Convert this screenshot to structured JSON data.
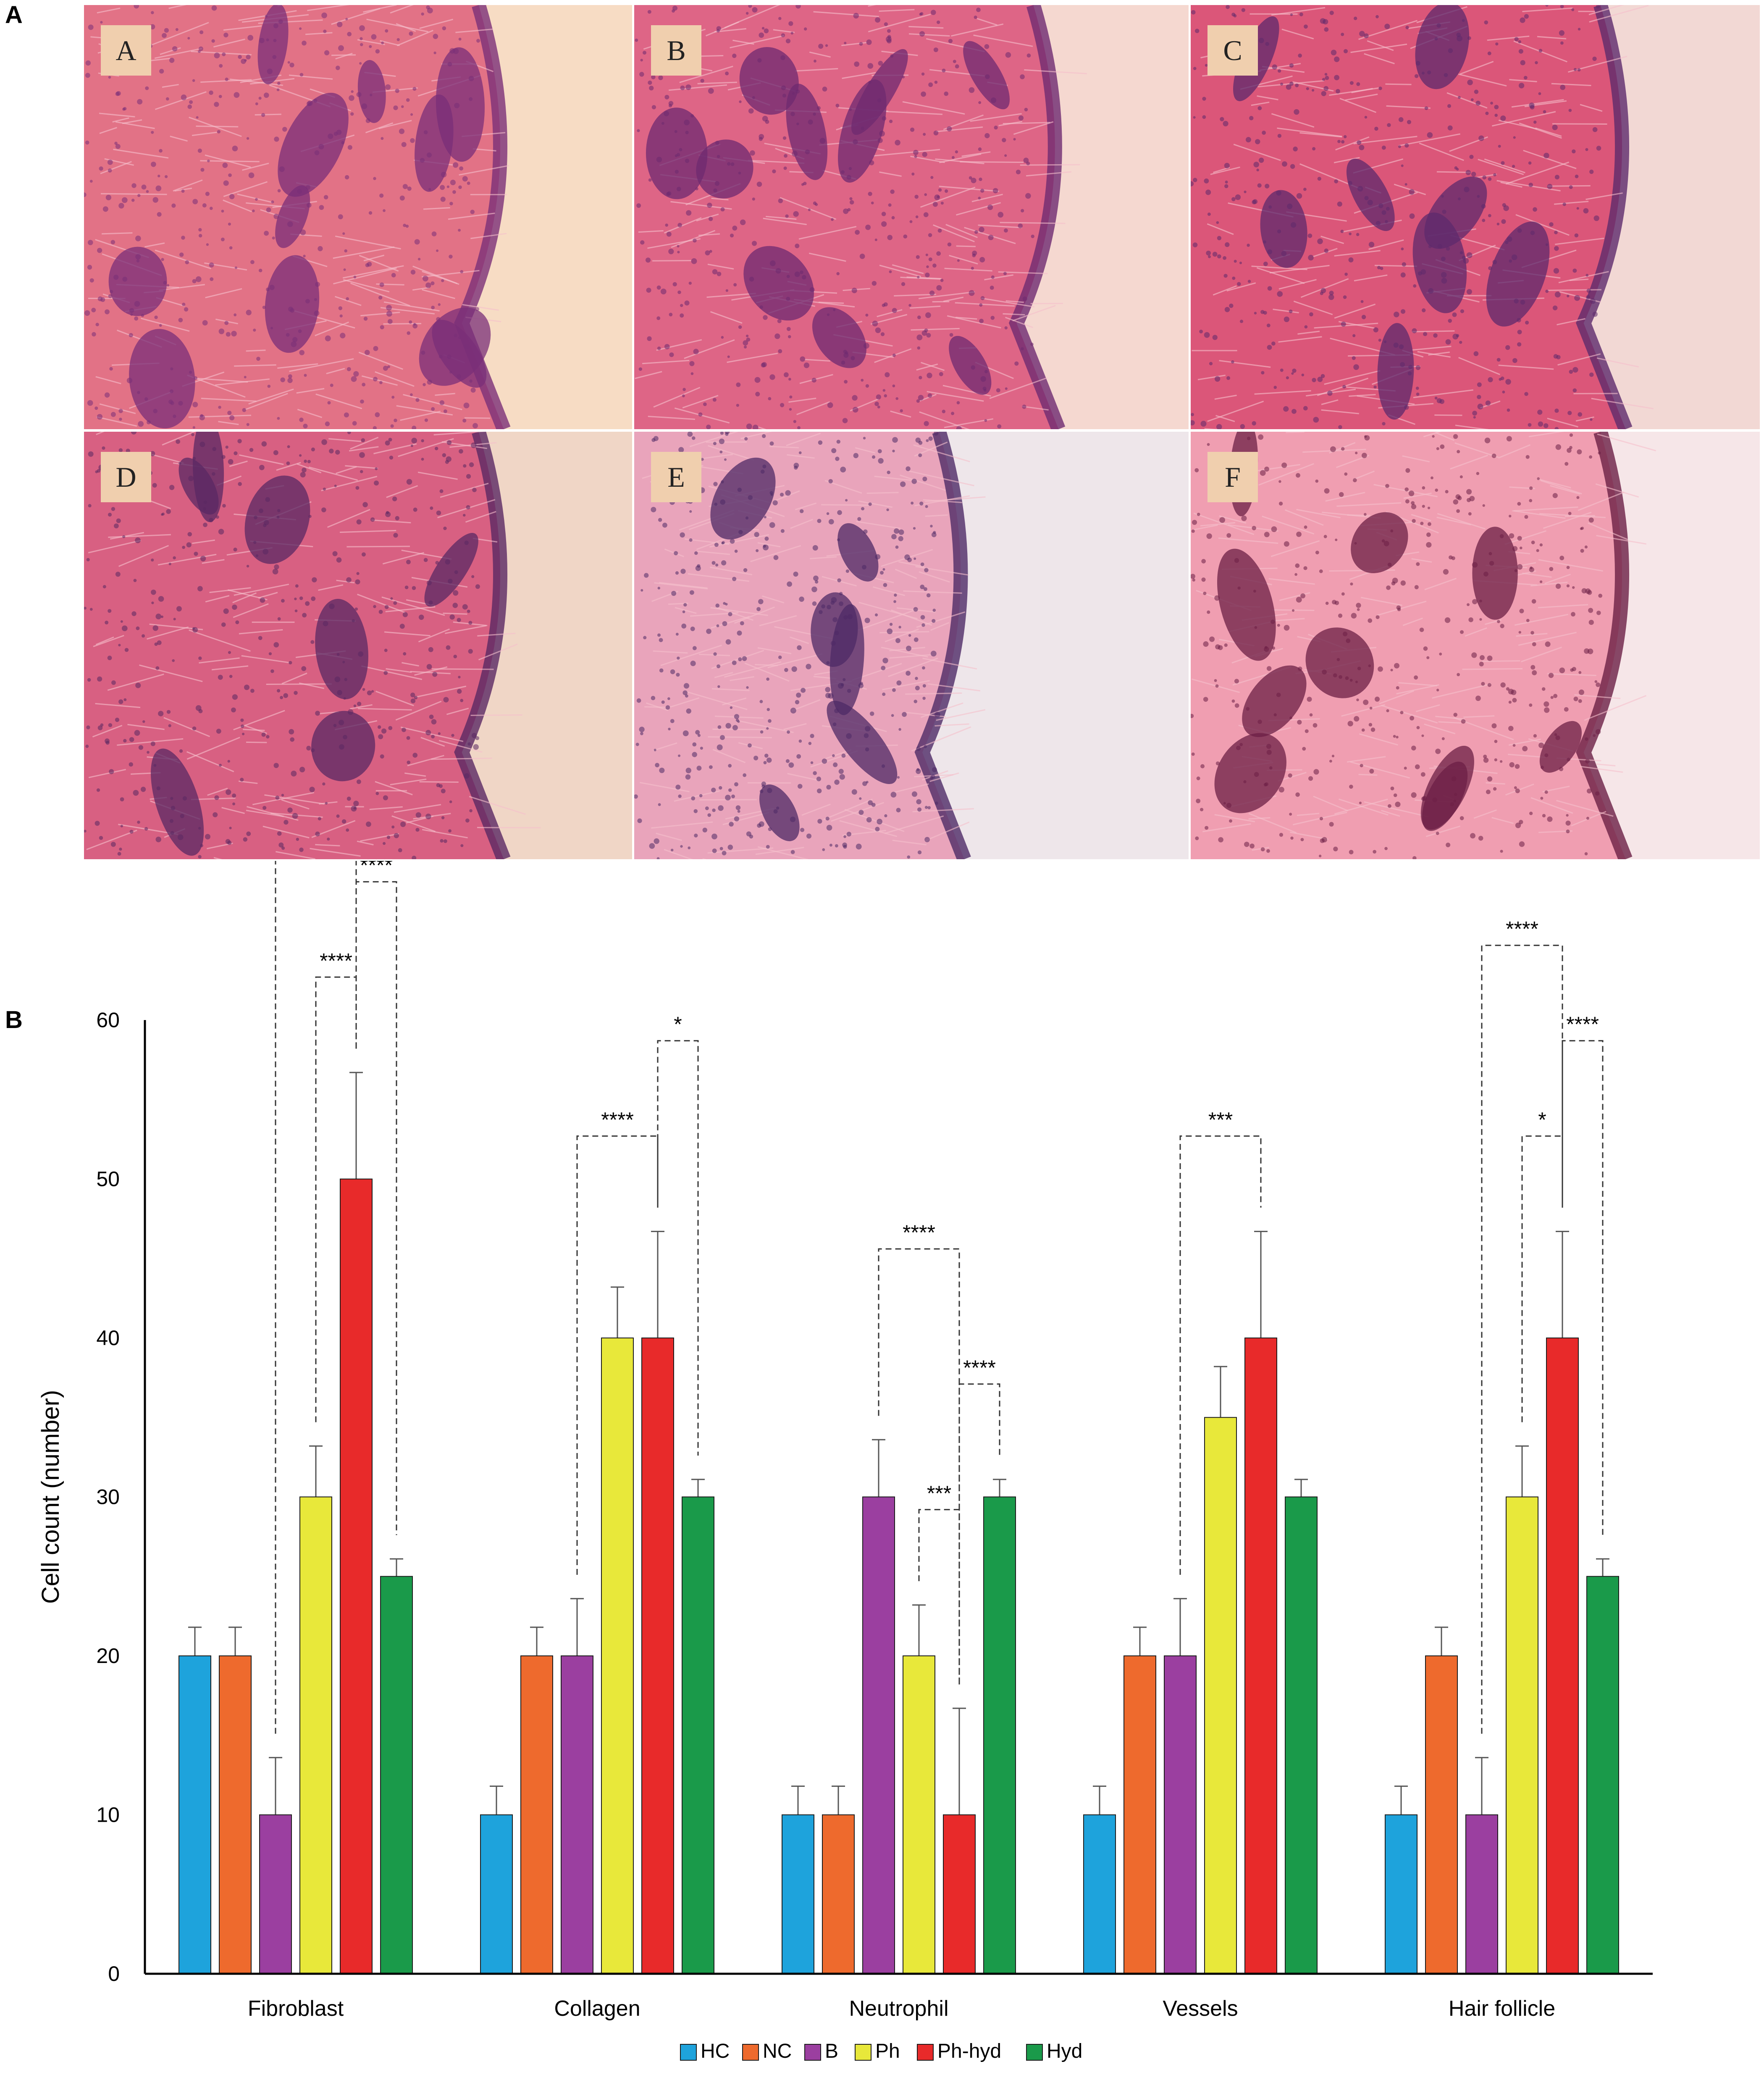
{
  "panel_labels": {
    "a": "A",
    "b": "B"
  },
  "micrographs": [
    {
      "letter": "A",
      "tissue": "#e06c83",
      "dark": "#7a2f78",
      "bg": "#f7dcc4"
    },
    {
      "letter": "B",
      "tissue": "#dc5f82",
      "dark": "#6e2a70",
      "bg": "#f5d8d0"
    },
    {
      "letter": "C",
      "tissue": "#d94f74",
      "dark": "#5d2a6c",
      "bg": "#f2d8d4"
    },
    {
      "letter": "D",
      "tissue": "#d65a7e",
      "dark": "#5a2863",
      "bg": "#f0d6c6"
    },
    {
      "letter": "E",
      "tissue": "#e8a0b8",
      "dark": "#4e2a66",
      "bg": "#eee6ea"
    },
    {
      "letter": "F",
      "tissue": "#ef9aae",
      "dark": "#6c1f45",
      "bg": "#f6e6e8"
    }
  ],
  "chart_data": {
    "type": "bar",
    "categories": [
      "Fibroblast",
      "Collagen",
      "Neutrophil",
      "Vessels",
      "Hair follicle"
    ],
    "ylabel": "Cell count (number)",
    "ylim": [
      0,
      60
    ],
    "yticks": [
      0,
      10,
      20,
      30,
      40,
      50,
      60
    ],
    "legend_position": "bottom-center",
    "series": [
      {
        "name": "HC",
        "color": "#1ea3dc",
        "values": [
          20,
          10,
          10,
          10,
          10
        ],
        "errors": [
          1.8,
          1.8,
          1.8,
          1.8,
          1.8
        ]
      },
      {
        "name": "NC",
        "color": "#ee6a2d",
        "values": [
          20,
          20,
          10,
          20,
          20
        ],
        "errors": [
          1.8,
          1.8,
          1.8,
          1.8,
          1.8
        ]
      },
      {
        "name": "B",
        "color": "#9b3fa0",
        "values": [
          10,
          20,
          30,
          20,
          10
        ],
        "errors": [
          3.6,
          3.6,
          3.6,
          3.6,
          3.6
        ]
      },
      {
        "name": "Ph",
        "color": "#e8e83a",
        "values": [
          30,
          40,
          20,
          35,
          30
        ],
        "errors": [
          3.2,
          3.2,
          3.2,
          3.2,
          3.2
        ]
      },
      {
        "name": "Ph-hyd",
        "color": "#e82a2a",
        "values": [
          50,
          40,
          10,
          40,
          40
        ],
        "errors": [
          6.7,
          6.7,
          6.7,
          6.7,
          6.7
        ]
      },
      {
        "name": "Hyd",
        "color": "#1a9a4a",
        "values": [
          25,
          30,
          30,
          30,
          25
        ],
        "errors": [
          1.1,
          1.1,
          1.1,
          1.1,
          1.1
        ]
      }
    ],
    "significance": [
      {
        "category": 0,
        "from": 2,
        "to": 4,
        "label": "****",
        "level": 2
      },
      {
        "category": 0,
        "from": 3,
        "to": 4,
        "label": "****",
        "level": 0
      },
      {
        "category": 0,
        "from": 4,
        "to": 5,
        "label": "****",
        "level": 1
      },
      {
        "category": 1,
        "from": 2,
        "to": 4,
        "label": "****",
        "level": 0
      },
      {
        "category": 1,
        "from": 4,
        "to": 5,
        "label": "*",
        "level": 1
      },
      {
        "category": 2,
        "from": 2,
        "to": 4,
        "label": "****",
        "level": 1
      },
      {
        "category": 2,
        "from": 3,
        "to": 4,
        "label": "***",
        "level": 0
      },
      {
        "category": 2,
        "from": 4,
        "to": 5,
        "label": "****",
        "level": 0
      },
      {
        "category": 3,
        "from": 2,
        "to": 4,
        "label": "***",
        "level": 0
      },
      {
        "category": 4,
        "from": 2,
        "to": 4,
        "label": "****",
        "level": 2
      },
      {
        "category": 4,
        "from": 3,
        "to": 4,
        "label": "*",
        "level": 0
      },
      {
        "category": 4,
        "from": 4,
        "to": 5,
        "label": "****",
        "level": 1
      }
    ]
  }
}
